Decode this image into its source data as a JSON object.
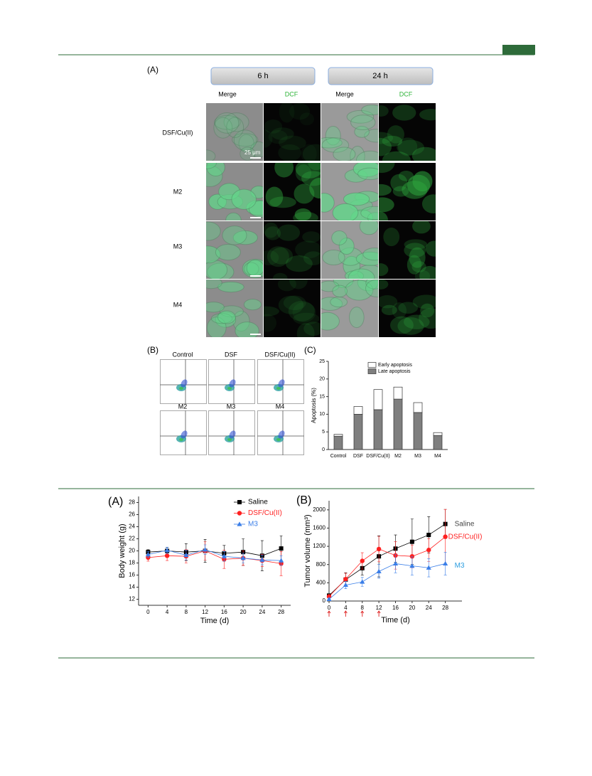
{
  "microscopy": {
    "label": "(A)",
    "time_headers": [
      "6 h",
      "24 h"
    ],
    "column_labels": [
      "Merge",
      "DCF",
      "Merge",
      "DCF"
    ],
    "row_labels": [
      "DSF/Cu(II)",
      "M2",
      "M3",
      "M4"
    ],
    "scale_bar": "25 μm"
  },
  "flow_cytometry": {
    "label": "(B)",
    "titles": [
      "Control",
      "DSF",
      "DSF/Cu(II)",
      "M2",
      "M3",
      "M4"
    ]
  },
  "chart_data": [
    {
      "type": "bar",
      "label": "(C)",
      "stacked": true,
      "y_label": "Apoptosis (%)",
      "categories": [
        "Control",
        "DSF",
        "DSF/Cu(II)",
        "M2",
        "M3",
        "M4"
      ],
      "series": [
        {
          "name": "Late apoptosis",
          "color": "#7f7f7f",
          "values": [
            3.8,
            10.0,
            11.3,
            14.3,
            10.5,
            4.0
          ]
        },
        {
          "name": "Early apoptosis",
          "color": "#ffffff",
          "values": [
            0.5,
            2.2,
            5.7,
            3.4,
            2.8,
            0.8
          ]
        }
      ],
      "ylim": [
        0,
        25
      ],
      "yticks": [
        0,
        5,
        10,
        15,
        20,
        25
      ],
      "legend": "top"
    },
    {
      "type": "line",
      "label": "(A)",
      "x_label": "Time (d)",
      "y_label": "Body weight (g)",
      "x": [
        0,
        4,
        8,
        12,
        16,
        20,
        24,
        28
      ],
      "xlim": [
        -2,
        30
      ],
      "xticks": [
        0,
        4,
        8,
        12,
        16,
        20,
        24,
        28
      ],
      "ylim": [
        11,
        29
      ],
      "yticks": [
        12,
        14,
        16,
        18,
        20,
        22,
        24,
        26,
        28
      ],
      "legend": "top-right",
      "series": [
        {
          "name": "Saline",
          "color": "#000000",
          "marker": "square",
          "values": [
            19.8,
            20.0,
            19.8,
            20.0,
            19.6,
            19.8,
            19.2,
            20.4
          ],
          "errors": [
            0.4,
            0.6,
            1.4,
            1.9,
            1.3,
            2.2,
            2.5,
            2.1
          ]
        },
        {
          "name": "DSF/Cu(II)",
          "color": "#ff2020",
          "marker": "circle",
          "values": [
            18.9,
            19.2,
            19.1,
            20.0,
            18.6,
            18.8,
            18.4,
            17.9
          ],
          "errors": [
            0.6,
            0.8,
            1.1,
            1.5,
            1.5,
            1.2,
            1.0,
            2.0
          ]
        },
        {
          "name": "M3",
          "color": "#3a7ee8",
          "marker": "triangle",
          "values": [
            19.4,
            20.1,
            19.3,
            20.2,
            19.1,
            18.8,
            18.5,
            18.4
          ],
          "errors": [
            0.5,
            0.5,
            0.8,
            0.8,
            0.8,
            0.8,
            0.8,
            0.8
          ]
        }
      ]
    },
    {
      "type": "line",
      "label": "(B)",
      "x_label": "Time (d)",
      "y_label": "Tumor volume (mm³)",
      "x": [
        0,
        4,
        8,
        12,
        16,
        20,
        24,
        28
      ],
      "xlim": [
        0,
        32
      ],
      "xticks": [
        0,
        4,
        8,
        12,
        16,
        20,
        24,
        28
      ],
      "ylim": [
        0,
        2200
      ],
      "yticks": [
        0,
        400,
        800,
        1200,
        1600,
        2000
      ],
      "end_labels": true,
      "dose_days": [
        0,
        4,
        8,
        12
      ],
      "dose_color": "#e03030",
      "series": [
        {
          "name": "Saline",
          "color": "#000000",
          "label_color": "#444444",
          "marker": "square",
          "values": [
            120,
            470,
            720,
            980,
            1150,
            1300,
            1450,
            1690
          ],
          "errors": [
            40,
            150,
            150,
            450,
            300,
            500,
            400,
            320
          ]
        },
        {
          "name": "DSF/Cu(II)",
          "color": "#ff2020",
          "label_color": "#ff2020",
          "marker": "circle",
          "values": [
            100,
            480,
            880,
            1140,
            1000,
            980,
            1120,
            1410
          ],
          "errors": [
            30,
            130,
            180,
            280,
            300,
            250,
            250,
            600
          ]
        },
        {
          "name": "M3",
          "color": "#3a7ee8",
          "label_color": "#2a9de0",
          "marker": "triangle",
          "values": [
            40,
            350,
            420,
            650,
            820,
            770,
            730,
            820
          ],
          "errors": [
            20,
            80,
            100,
            150,
            200,
            200,
            200,
            250
          ]
        }
      ]
    }
  ]
}
